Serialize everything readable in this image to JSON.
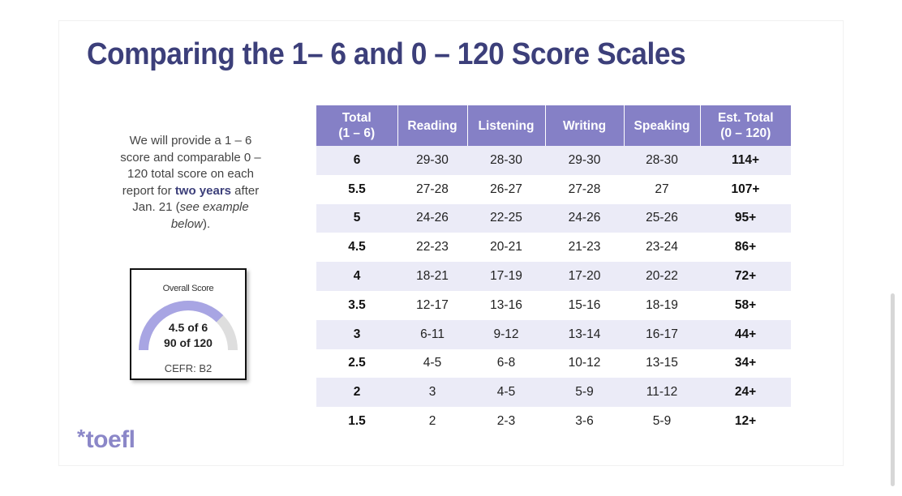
{
  "slide": {
    "title": "Comparing the 1– 6 and 0 – 120 Score Scales",
    "intro": {
      "part1": "We will provide a 1 – 6 score and comparable 0 – 120 total score on each report for ",
      "bold": "two years",
      "part2": " after Jan. 21 (",
      "italic": "see example below",
      "part3": ")."
    },
    "score_card": {
      "label": "Overall Score",
      "score": "4.5 of 6",
      "total": "90 of 120",
      "cefr": "CEFR: B2",
      "progress_fraction": 0.75,
      "arc_color": "#a8a5e3",
      "track_color": "#dedede"
    },
    "logo": {
      "asterisk": "*",
      "text": "toefl"
    },
    "table": {
      "headers": [
        {
          "line1": "Total",
          "line2": "(1 – 6)"
        },
        {
          "line1": "Reading",
          "line2": ""
        },
        {
          "line1": "Listening",
          "line2": ""
        },
        {
          "line1": "Writing",
          "line2": ""
        },
        {
          "line1": "Speaking",
          "line2": ""
        },
        {
          "line1": "Est. Total",
          "line2": "(0 – 120)"
        }
      ],
      "rows": [
        [
          "6",
          "29-30",
          "28-30",
          "29-30",
          "28-30",
          "114+"
        ],
        [
          "5.5",
          "27-28",
          "26-27",
          "27-28",
          "27",
          "107+"
        ],
        [
          "5",
          "24-26",
          "22-25",
          "24-26",
          "25-26",
          "95+"
        ],
        [
          "4.5",
          "22-23",
          "20-21",
          "21-23",
          "23-24",
          "86+"
        ],
        [
          "4",
          "18-21",
          "17-19",
          "17-20",
          "20-22",
          "72+"
        ],
        [
          "3.5",
          "12-17",
          "13-16",
          "15-16",
          "18-19",
          "58+"
        ],
        [
          "3",
          "6-11",
          "9-12",
          "13-14",
          "16-17",
          "44+"
        ],
        [
          "2.5",
          "4-5",
          "6-8",
          "10-12",
          "13-15",
          "34+"
        ],
        [
          "2",
          "3",
          "4-5",
          "5-9",
          "11-12",
          "24+"
        ],
        [
          "1.5",
          "2",
          "2-3",
          "3-6",
          "5-9",
          "12+"
        ]
      ]
    },
    "colors": {
      "title": "#3c3f7a",
      "header_bg": "#8580c6",
      "stripe": "#ebebf7",
      "logo": "#8b87c8"
    }
  }
}
